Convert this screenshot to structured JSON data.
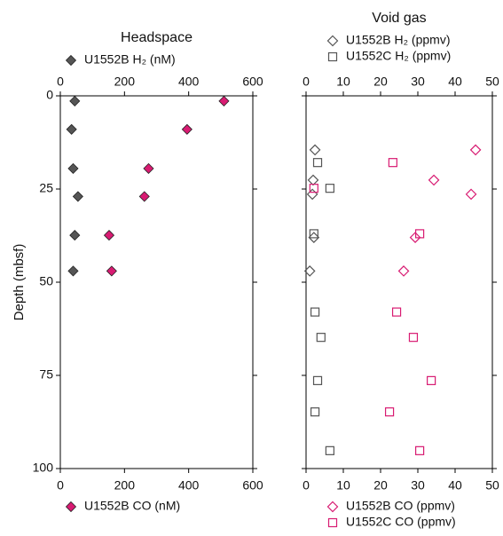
{
  "chart_data": [
    {
      "type": "scatter",
      "title": "Headspace",
      "ylabel": "Depth (mbsf)",
      "xlim": [
        0,
        600
      ],
      "xticks": [
        0,
        200,
        400,
        600
      ],
      "ylim": [
        0,
        100
      ],
      "yticks": [
        0,
        25,
        50,
        75,
        100
      ],
      "y_inverted": true,
      "ytick_labels": true,
      "series": [
        {
          "name": "U1552B H₂ (nM)",
          "color": "#555555",
          "marker": "diamond",
          "filled": true,
          "legend": "top",
          "x": [
            45,
            35,
            40,
            55,
            45,
            40
          ],
          "values": [
            1.4,
            9,
            19.5,
            27,
            37.4,
            47
          ]
        },
        {
          "name": "U1552B CO (nM)",
          "color": "#d81b72",
          "marker": "diamond",
          "filled": true,
          "legend": "bottom",
          "x": [
            510,
            395,
            275,
            262,
            152,
            160
          ],
          "values": [
            1.4,
            9,
            19.5,
            27,
            37.4,
            47
          ]
        }
      ]
    },
    {
      "type": "scatter",
      "title": "Void gas",
      "xlim": [
        0,
        50
      ],
      "xticks": [
        0,
        10,
        20,
        30,
        40,
        50
      ],
      "ylim": [
        0,
        100
      ],
      "yticks": [
        0,
        25,
        50,
        75,
        100
      ],
      "y_inverted": true,
      "ytick_labels": false,
      "series": [
        {
          "name": "U1552B H₂ (ppmv)",
          "color": "#555555",
          "marker": "diamond",
          "filled": false,
          "legend": "top",
          "x": [
            2.4,
            1.9,
            1.7,
            2.1,
            1
          ],
          "values": [
            14.5,
            22.6,
            26.4,
            38,
            47
          ]
        },
        {
          "name": "U1552C H₂ (ppmv)",
          "color": "#555555",
          "marker": "square",
          "filled": false,
          "legend": "top",
          "x": [
            3.1,
            6.4,
            2.1,
            2.4,
            4,
            3.1,
            2.4,
            6.4
          ],
          "values": [
            17.9,
            24.8,
            37,
            58,
            64.8,
            76.4,
            84.8,
            95.2
          ]
        },
        {
          "name": "U1552B CO (ppmv)",
          "color": "#d81b72",
          "marker": "diamond",
          "filled": false,
          "legend": "bottom",
          "x": [
            45.5,
            34.3,
            44.3,
            29.3,
            26.2
          ],
          "values": [
            14.5,
            22.6,
            26.4,
            38,
            47
          ]
        },
        {
          "name": "U1552C CO (ppmv)",
          "color": "#d81b72",
          "marker": "square",
          "filled": false,
          "legend": "bottom",
          "x": [
            23.3,
            2.1,
            30.5,
            24.3,
            28.8,
            33.6,
            22.4,
            30.5
          ],
          "values": [
            17.9,
            24.8,
            37,
            58,
            64.8,
            76.4,
            84.8,
            95.2
          ]
        }
      ]
    }
  ]
}
